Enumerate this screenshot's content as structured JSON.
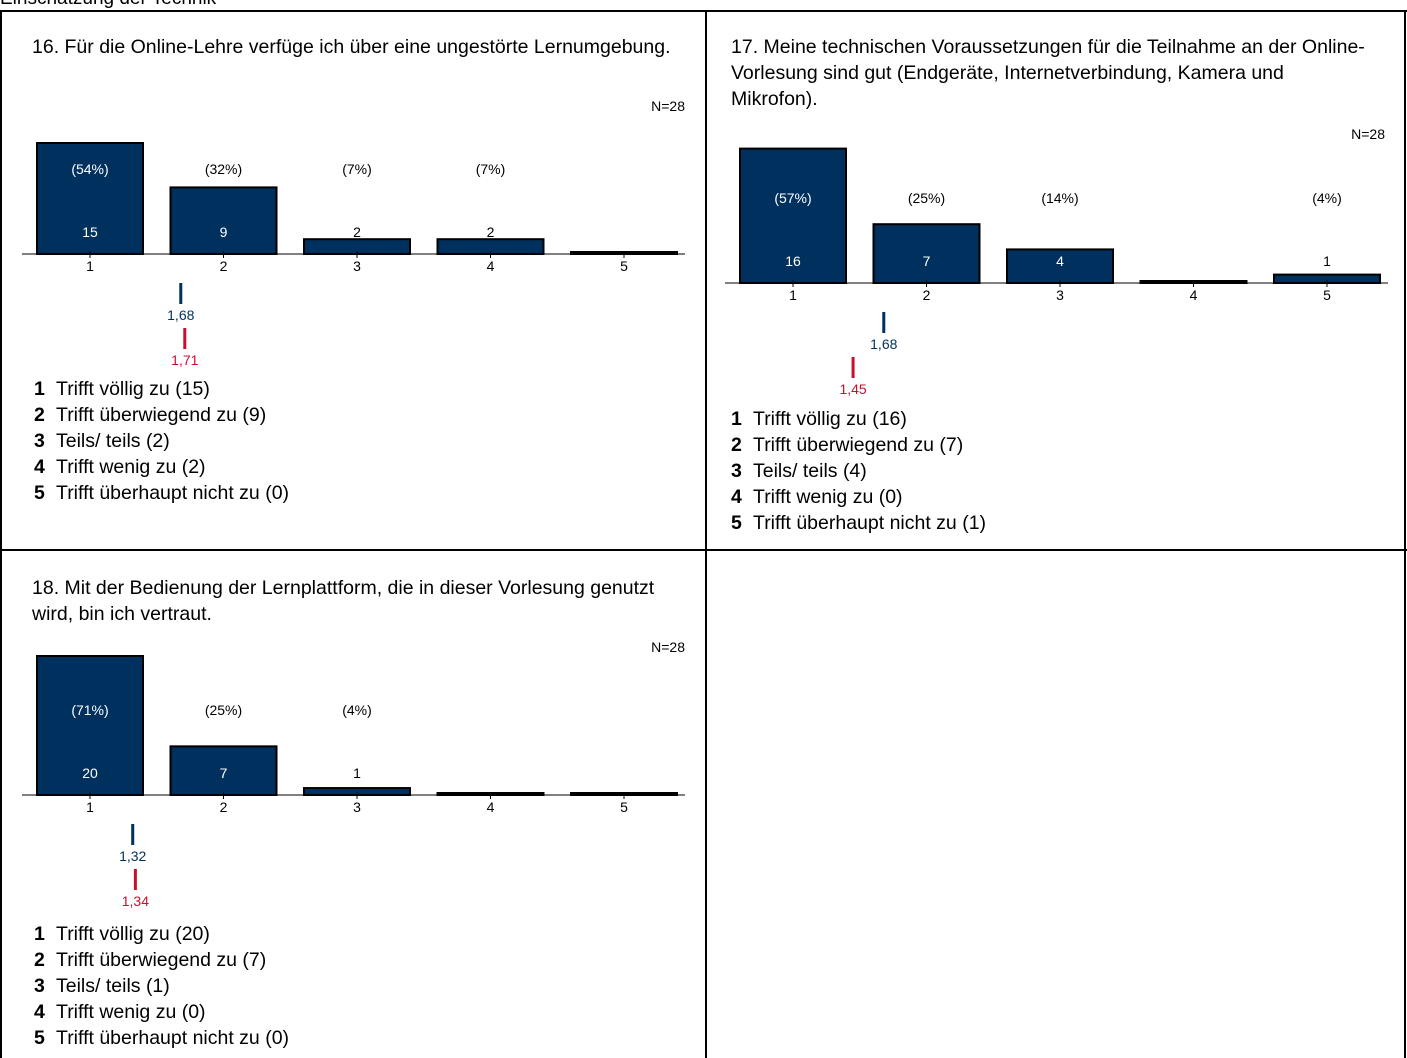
{
  "page": {
    "top_text": "Einschätzung der Technik"
  },
  "colors": {
    "bar": "#00305e",
    "mean_line": "#00305e",
    "mean_text": "#00305e",
    "ref_line": "#c8102e",
    "ref_text": "#c8102e",
    "axis": "#000000"
  },
  "chart_data": [
    {
      "type": "bar",
      "title": "16. Für die Online-Lehre verfüge ich über eine ungestörte Lernumgebung.",
      "n_label": "N=28",
      "categories": [
        "1",
        "2",
        "3",
        "4",
        "5"
      ],
      "values": [
        15,
        9,
        2,
        2,
        0
      ],
      "percent_labels": [
        "(54%)",
        "(32%)",
        "(7%)",
        "(7%)",
        ""
      ],
      "count_labels": [
        "15",
        "9",
        "2",
        "2",
        ""
      ],
      "mean": 1.68,
      "mean_label": "1,68",
      "reference": 1.71,
      "reference_label": "1,71",
      "legend": [
        {
          "num": "1",
          "text": "Trifft völlig zu (15)"
        },
        {
          "num": "2",
          "text": "Trifft überwiegend zu (9)"
        },
        {
          "num": "3",
          "text": "Teils/ teils (2)"
        },
        {
          "num": "4",
          "text": "Trifft wenig zu (2)"
        },
        {
          "num": "5",
          "text": "Trifft überhaupt nicht zu (0)"
        }
      ]
    },
    {
      "type": "bar",
      "title": "17. Meine technischen Voraussetzungen für die Teilnahme an der Online-Vorlesung sind gut (Endgeräte, Internetverbindung, Kamera und Mikrofon).",
      "n_label": "N=28",
      "categories": [
        "1",
        "2",
        "3",
        "4",
        "5"
      ],
      "values": [
        16,
        7,
        4,
        0,
        1
      ],
      "percent_labels": [
        "(57%)",
        "(25%)",
        "(14%)",
        "",
        "(4%)"
      ],
      "count_labels": [
        "16",
        "7",
        "4",
        "",
        "1"
      ],
      "mean": 1.68,
      "mean_label": "1,68",
      "reference": 1.45,
      "reference_label": "1,45",
      "legend": [
        {
          "num": "1",
          "text": "Trifft völlig zu (16)"
        },
        {
          "num": "2",
          "text": "Trifft überwiegend zu (7)"
        },
        {
          "num": "3",
          "text": "Teils/ teils (4)"
        },
        {
          "num": "4",
          "text": "Trifft wenig zu (0)"
        },
        {
          "num": "5",
          "text": "Trifft überhaupt nicht zu (1)"
        }
      ]
    },
    {
      "type": "bar",
      "title": "18. Mit der Bedienung der Lernplattform, die in dieser Vorlesung genutzt wird, bin ich vertraut.",
      "n_label": "N=28",
      "categories": [
        "1",
        "2",
        "3",
        "4",
        "5"
      ],
      "values": [
        20,
        7,
        1,
        0,
        0
      ],
      "percent_labels": [
        "(71%)",
        "(25%)",
        "(4%)",
        "",
        ""
      ],
      "count_labels": [
        "20",
        "7",
        "1",
        "",
        ""
      ],
      "mean": 1.32,
      "mean_label": "1,32",
      "reference": 1.34,
      "reference_label": "1,34",
      "legend": [
        {
          "num": "1",
          "text": "Trifft völlig zu (20)"
        },
        {
          "num": "2",
          "text": "Trifft überwiegend zu (7)"
        },
        {
          "num": "3",
          "text": "Teils/ teils (1)"
        },
        {
          "num": "4",
          "text": "Trifft wenig zu (0)"
        },
        {
          "num": "5",
          "text": "Trifft überhaupt nicht zu (0)"
        }
      ]
    }
  ]
}
